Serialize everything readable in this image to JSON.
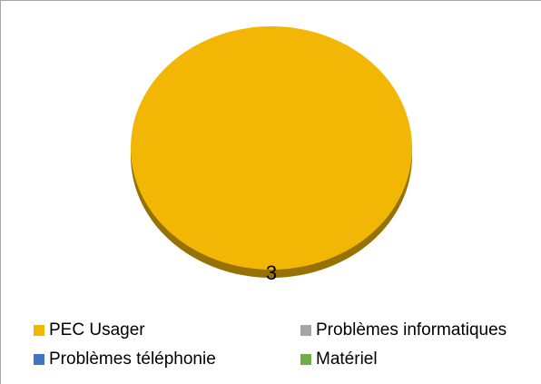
{
  "chart_data": {
    "type": "pie",
    "title": "",
    "categories": [
      "PEC Usager",
      "Problèmes informatiques",
      "Problèmes téléphonie",
      "Matériel"
    ],
    "values": [
      3,
      0,
      0,
      0
    ],
    "colors": [
      "#f2b705",
      "#a5a5a5",
      "#4472c4",
      "#70ad47"
    ],
    "data_labels": [
      "3",
      "",
      "",
      ""
    ],
    "legend_position": "bottom",
    "style": "3d"
  },
  "legend": {
    "items": [
      {
        "label": "PEC Usager",
        "color": "#f2b705"
      },
      {
        "label": "Problèmes informatiques",
        "color": "#a5a5a5"
      },
      {
        "label": "Problèmes téléphonie",
        "color": "#4472c4"
      },
      {
        "label": "Matériel",
        "color": "#70ad47"
      }
    ]
  }
}
